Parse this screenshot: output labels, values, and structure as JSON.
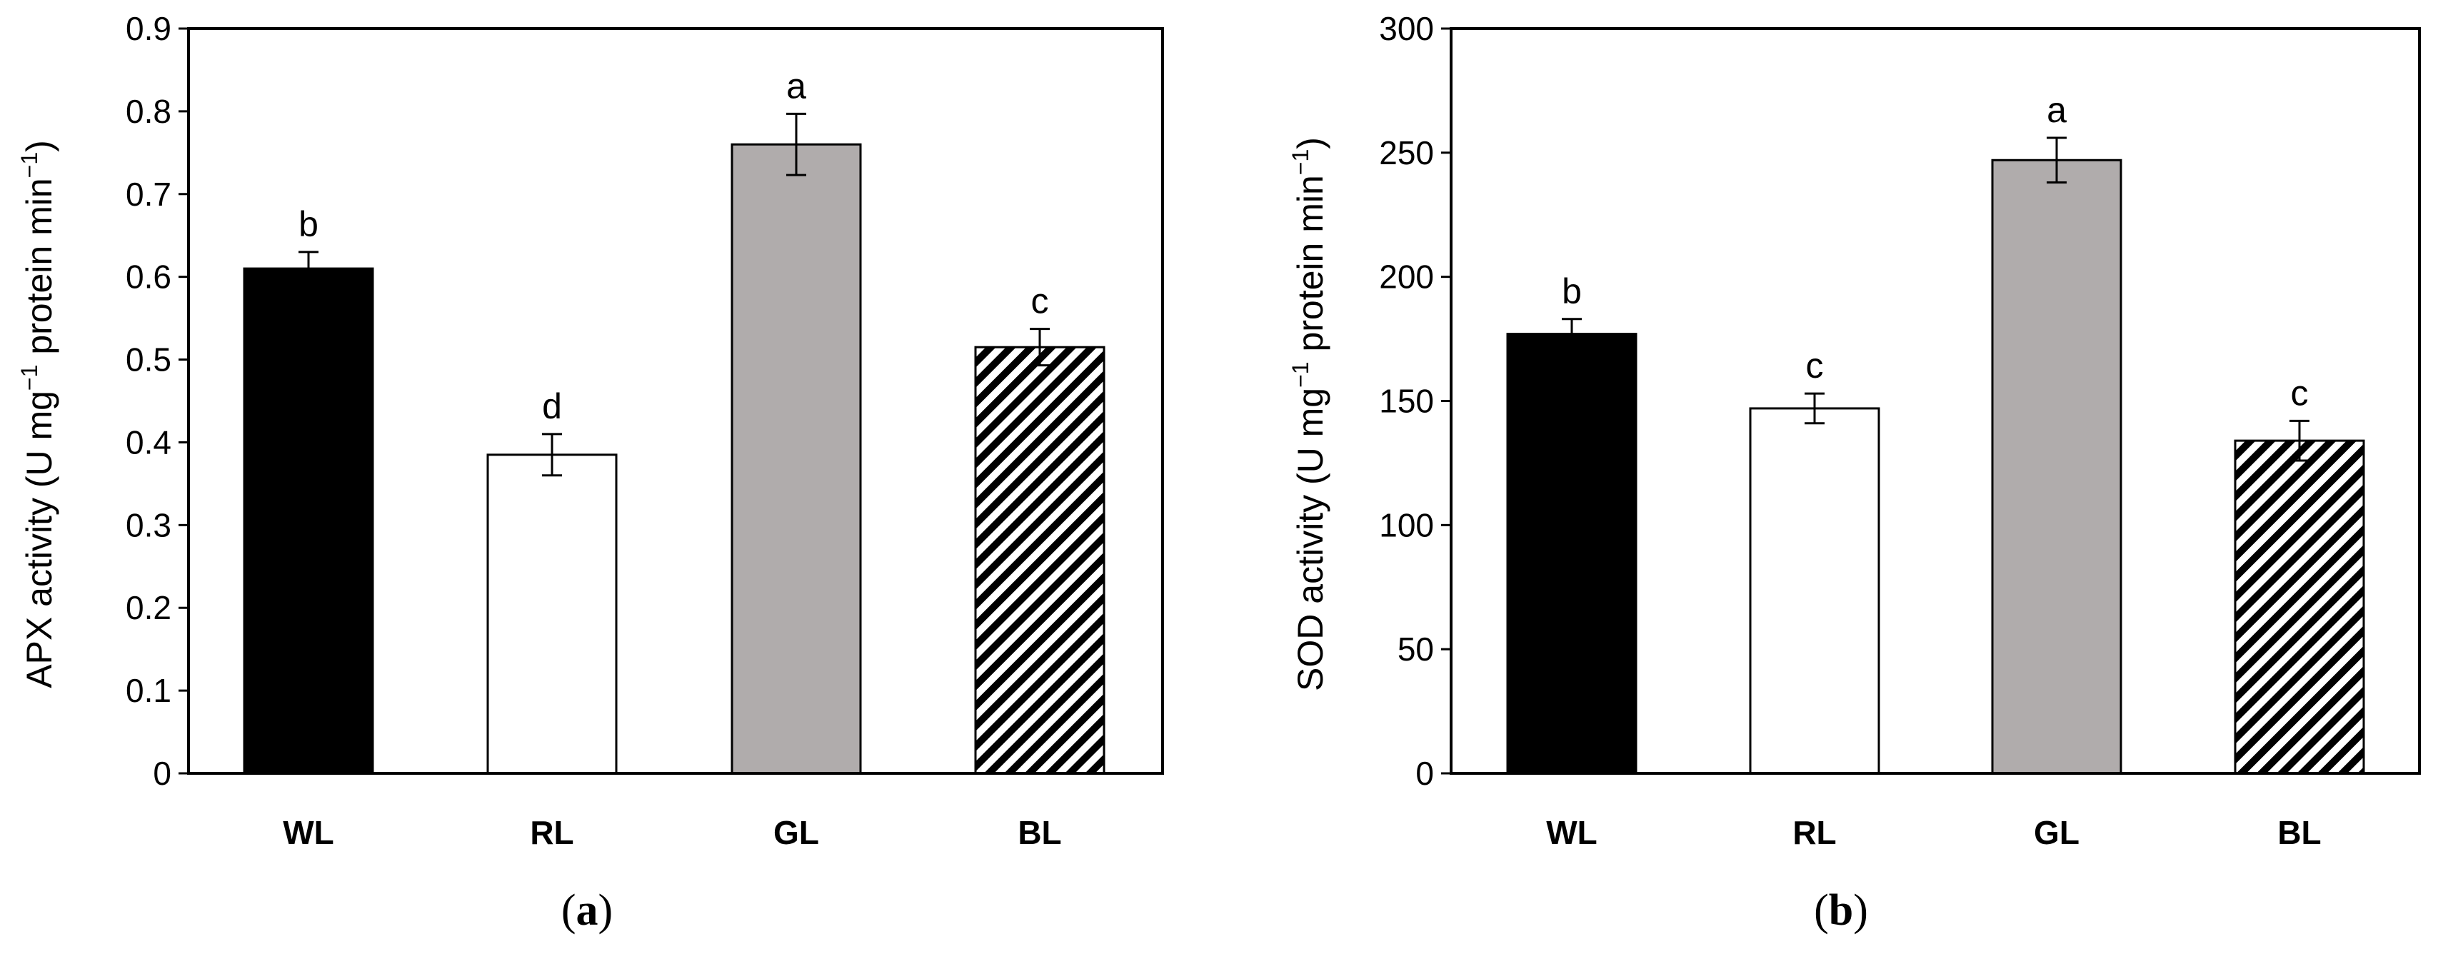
{
  "chart_data": [
    {
      "type": "bar",
      "panel_label": "a",
      "ylabel": "APX activity  (U mg",
      "ylabel_sup1": "−1",
      "ylabel_mid": " protein min",
      "ylabel_sup2": "−1",
      "ylabel_end": ")",
      "ylim": [
        0,
        0.9
      ],
      "yticks": [
        0,
        0.1,
        0.2,
        0.3,
        0.4,
        0.5,
        0.6,
        0.7,
        0.8,
        0.9
      ],
      "ytick_labels": [
        "0",
        "0.1",
        "0.2",
        "0.3",
        "0.4",
        "0.5",
        "0.6",
        "0.7",
        "0.8",
        "0.9"
      ],
      "categories": [
        "WL",
        "RL",
        "GL",
        "BL"
      ],
      "values": [
        0.61,
        0.385,
        0.76,
        0.515
      ],
      "errors": [
        0.02,
        0.025,
        0.037,
        0.022
      ],
      "letters": [
        "b",
        "d",
        "a",
        "c"
      ],
      "fills": [
        "black",
        "white",
        "gray",
        "hatch"
      ]
    },
    {
      "type": "bar",
      "panel_label": "b",
      "ylabel": "SOD activity  (U mg",
      "ylabel_sup1": "−1",
      "ylabel_mid": " protein min",
      "ylabel_sup2": "−1",
      "ylabel_end": ")",
      "ylim": [
        0,
        300
      ],
      "yticks": [
        0,
        50,
        100,
        150,
        200,
        250,
        300
      ],
      "ytick_labels": [
        "0",
        "50",
        "100",
        "150",
        "200",
        "250",
        "300"
      ],
      "categories": [
        "WL",
        "RL",
        "GL",
        "BL"
      ],
      "values": [
        177,
        147,
        247,
        134
      ],
      "errors": [
        6,
        6,
        9,
        8
      ],
      "letters": [
        "b",
        "c",
        "a",
        "c"
      ],
      "fills": [
        "black",
        "white",
        "gray",
        "hatch"
      ]
    }
  ],
  "colors": {
    "black": "#000000",
    "white": "#ffffff",
    "gray": "#b0acac",
    "axis": "#000000"
  }
}
